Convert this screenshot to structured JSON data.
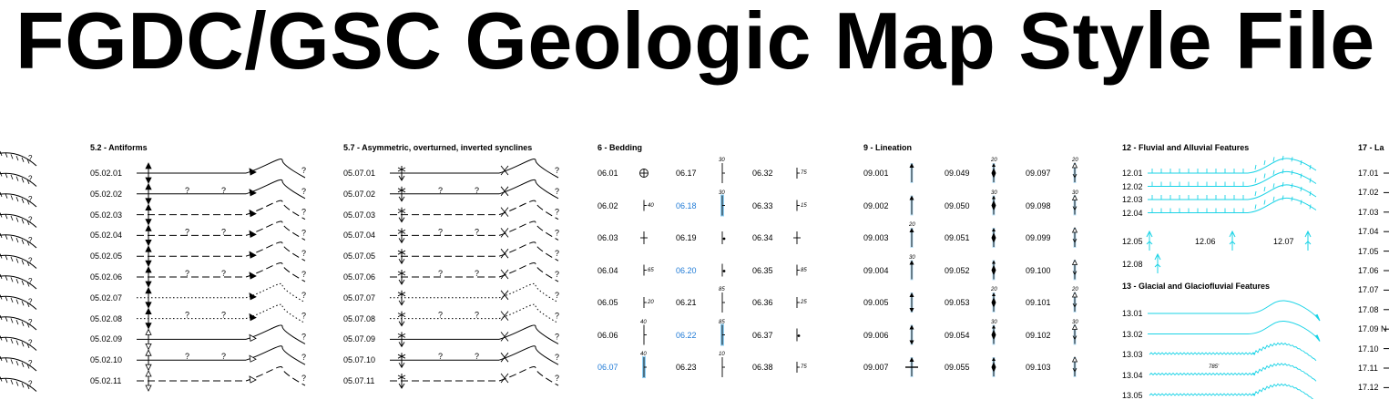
{
  "page": {
    "title": "FGDC/GSC Geologic Map Style File"
  },
  "antiforms": {
    "heading": "5.2 - Antiforms",
    "rows": [
      {
        "code": "05.02.01",
        "line": "solid",
        "q": false,
        "filled": true
      },
      {
        "code": "05.02.02",
        "line": "solid",
        "q": true,
        "filled": true
      },
      {
        "code": "05.02.03",
        "line": "dashed",
        "q": false,
        "filled": true
      },
      {
        "code": "05.02.04",
        "line": "dashed",
        "q": true,
        "filled": true
      },
      {
        "code": "05.02.05",
        "line": "dashed",
        "q": false,
        "filled": true
      },
      {
        "code": "05.02.06",
        "line": "dashed",
        "q": true,
        "filled": true
      },
      {
        "code": "05.02.07",
        "line": "dotted",
        "q": false,
        "filled": true
      },
      {
        "code": "05.02.08",
        "line": "dotted",
        "q": true,
        "filled": true
      },
      {
        "code": "05.02.09",
        "line": "solid",
        "q": false,
        "filled": false
      },
      {
        "code": "05.02.10",
        "line": "solid",
        "q": true,
        "filled": false
      },
      {
        "code": "05.02.11",
        "line": "dashed",
        "q": false,
        "filled": false
      }
    ]
  },
  "synclines": {
    "heading": "5.7 - Asymmetric, overturned, inverted synclines",
    "rows": [
      {
        "code": "05.07.01",
        "line": "solid",
        "q": false
      },
      {
        "code": "05.07.02",
        "line": "solid",
        "q": true
      },
      {
        "code": "05.07.03",
        "line": "dashed",
        "q": false
      },
      {
        "code": "05.07.04",
        "line": "dashed",
        "q": true
      },
      {
        "code": "05.07.05",
        "line": "dashed",
        "q": false
      },
      {
        "code": "05.07.06",
        "line": "dashed",
        "q": true
      },
      {
        "code": "05.07.07",
        "line": "dotted",
        "q": false
      },
      {
        "code": "05.07.08",
        "line": "dotted",
        "q": true
      },
      {
        "code": "05.07.09",
        "line": "solid",
        "q": false
      },
      {
        "code": "05.07.10",
        "line": "solid",
        "q": true
      },
      {
        "code": "05.07.11",
        "line": "dashed",
        "q": false
      }
    ]
  },
  "bedding": {
    "heading": "6 - Bedding",
    "col1": [
      {
        "code": "06.01",
        "blue": false,
        "sym": "circle"
      },
      {
        "code": "06.02",
        "blue": false,
        "sym": "tick",
        "val": "40"
      },
      {
        "code": "06.03",
        "blue": false,
        "sym": "cross"
      },
      {
        "code": "06.04",
        "blue": false,
        "sym": "tickwavy",
        "val": "65"
      },
      {
        "code": "06.05",
        "blue": false,
        "sym": "tickangle",
        "val": "20"
      },
      {
        "code": "06.06",
        "blue": false,
        "sym": "tall",
        "val": "40"
      },
      {
        "code": "06.07",
        "blue": true,
        "sym": "tall",
        "val": "40"
      }
    ],
    "col2": [
      {
        "code": "06.17",
        "blue": false,
        "sym": "tallval",
        "val": "30"
      },
      {
        "code": "06.18",
        "blue": true,
        "sym": "tallval",
        "val": "30"
      },
      {
        "code": "06.19",
        "blue": false,
        "sym": "dot"
      },
      {
        "code": "06.20",
        "blue": true,
        "sym": "dot"
      },
      {
        "code": "06.21",
        "blue": false,
        "sym": "tallval",
        "val": "85"
      },
      {
        "code": "06.22",
        "blue": true,
        "sym": "tallval",
        "val": "85"
      },
      {
        "code": "06.23",
        "blue": false,
        "sym": "tallval",
        "val": "10"
      }
    ],
    "col3": [
      {
        "code": "06.32",
        "blue": false,
        "sym": "tickwavy",
        "val": "75"
      },
      {
        "code": "06.33",
        "blue": false,
        "sym": "tick",
        "val": "15"
      },
      {
        "code": "06.34",
        "blue": false,
        "sym": "cross"
      },
      {
        "code": "06.35",
        "blue": false,
        "sym": "tickwavy",
        "val": "85"
      },
      {
        "code": "06.36",
        "blue": false,
        "sym": "tickangle",
        "val": "25"
      },
      {
        "code": "06.37",
        "blue": false,
        "sym": "dot"
      },
      {
        "code": "06.38",
        "blue": false,
        "sym": "tickwavy",
        "val": "75"
      }
    ]
  },
  "lineation": {
    "heading": "9 - Lineation",
    "col1": [
      {
        "code": "09.001",
        "sym": "arrow"
      },
      {
        "code": "09.002",
        "sym": "arrow"
      },
      {
        "code": "09.003",
        "sym": "arrow",
        "val": "20"
      },
      {
        "code": "09.004",
        "sym": "arrow",
        "val": "30"
      },
      {
        "code": "09.005",
        "sym": "double"
      },
      {
        "code": "09.006",
        "sym": "double"
      },
      {
        "code": "09.007",
        "sym": "crossarrow"
      }
    ],
    "col2": [
      {
        "code": "09.049",
        "sym": "diamond",
        "val": "20"
      },
      {
        "code": "09.050",
        "sym": "diamond",
        "val": "30"
      },
      {
        "code": "09.051",
        "sym": "diamond"
      },
      {
        "code": "09.052",
        "sym": "diamond"
      },
      {
        "code": "09.053",
        "sym": "diamond",
        "val": "20"
      },
      {
        "code": "09.054",
        "sym": "diamond",
        "val": "30"
      },
      {
        "code": "09.055",
        "sym": "diamond"
      }
    ],
    "col3": [
      {
        "code": "09.097",
        "sym": "open",
        "val": "20"
      },
      {
        "code": "09.098",
        "sym": "open",
        "val": "30"
      },
      {
        "code": "09.099",
        "sym": "open"
      },
      {
        "code": "09.100",
        "sym": "open"
      },
      {
        "code": "09.101",
        "sym": "open",
        "val": "20"
      },
      {
        "code": "09.102",
        "sym": "open",
        "val": "30"
      },
      {
        "code": "09.103",
        "sym": "open"
      }
    ]
  },
  "fluvial": {
    "heading": "12 - Fluvial and Alluvial Features",
    "line_codes": [
      "12.01",
      "12.02",
      "12.03",
      "12.04"
    ],
    "point_codes": [
      "12.05",
      "12.06",
      "12.07",
      "12.08"
    ],
    "color": "#1ad3e6"
  },
  "glacial": {
    "heading": "13 - Glacial and Glaciofluvial Features",
    "codes": [
      "13.01",
      "13.02",
      "13.03",
      "13.04",
      "13.05"
    ],
    "label": "785'",
    "color": "#1ad3e6"
  },
  "right_partial": {
    "heading": "17 - La",
    "codes": [
      "17.01",
      "17.02",
      "17.03",
      "17.04",
      "17.05",
      "17.06",
      "17.07",
      "17.08",
      "17.09 N",
      "17.10",
      "17.11",
      "17.12"
    ]
  }
}
